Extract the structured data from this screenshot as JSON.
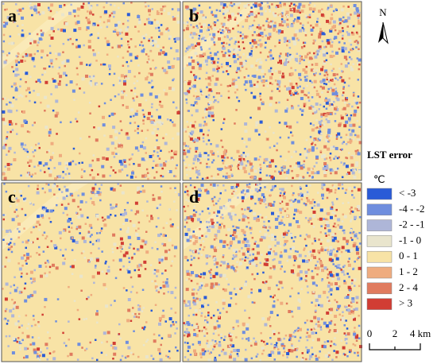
{
  "panels": [
    {
      "label": "a"
    },
    {
      "label": "b"
    },
    {
      "label": "c"
    },
    {
      "label": "d"
    }
  ],
  "north_arrow": {
    "label": "N"
  },
  "legend": {
    "title": "LST error",
    "unit": "℃",
    "items": [
      {
        "label": "< -3",
        "color": "#2a5bd7"
      },
      {
        "label": "-4 - -2",
        "color": "#6f8ede"
      },
      {
        "label": "-2 - -1",
        "color": "#aeb6d8"
      },
      {
        "label": "-1 - 0",
        "color": "#e9e5cd"
      },
      {
        "label": "0 - 1",
        "color": "#f8e3a6"
      },
      {
        "label": "1 - 2",
        "color": "#efac7f"
      },
      {
        "label": "2 - 4",
        "color": "#e07b5f"
      },
      {
        "label": "> 3",
        "color": "#d13d34"
      }
    ]
  },
  "scale_bar": {
    "labels": [
      "0",
      "2",
      "4 km"
    ]
  }
}
